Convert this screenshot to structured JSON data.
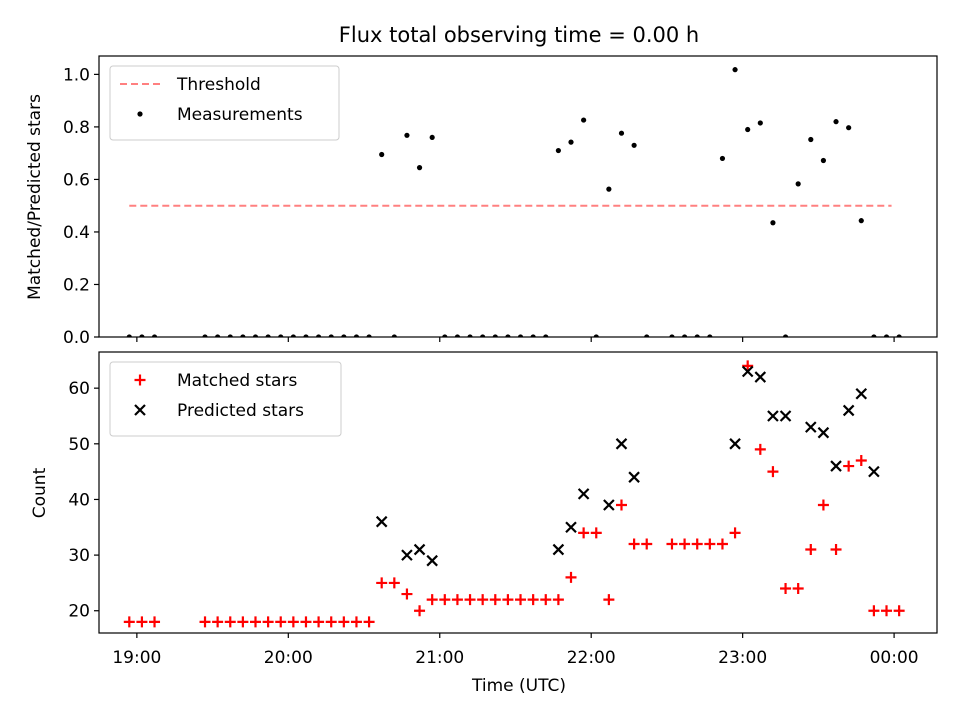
{
  "chart_data": [
    {
      "type": "scatter",
      "title": "Flux total observing time = 0.00 h",
      "ylabel": "Matched/Predicted stars",
      "xlabel": "",
      "xlim": [
        "18:45",
        "00:17"
      ],
      "ylim": [
        0,
        1.07
      ],
      "yticks": [
        "0.0",
        "0.2",
        "0.4",
        "0.6",
        "0.8",
        "1.0"
      ],
      "yticks_values": [
        0,
        0.2,
        0.4,
        0.6,
        0.8,
        1.0
      ],
      "xticks_values": [
        "19:00",
        "20:00",
        "21:00",
        "22:00",
        "23:00",
        "00:00"
      ],
      "grid": false,
      "legend_position": "top-left",
      "threshold": {
        "name": "Threshold",
        "value": 0.5,
        "color": "#ff8080",
        "x_start": "18:57",
        "x_end": "23:59"
      },
      "series": [
        {
          "name": "Measurements",
          "color": "#000000",
          "x": [
            "18:57",
            "19:02",
            "19:07",
            "19:27",
            "19:32",
            "19:37",
            "19:42",
            "19:47",
            "19:52",
            "19:57",
            "20:02",
            "20:07",
            "20:12",
            "20:17",
            "20:22",
            "20:27",
            "20:32",
            "20:37",
            "20:42",
            "20:47",
            "20:52",
            "20:57",
            "21:02",
            "21:07",
            "21:12",
            "21:17",
            "21:22",
            "21:27",
            "21:32",
            "21:37",
            "21:42",
            "21:47",
            "21:52",
            "21:57",
            "22:02",
            "22:07",
            "22:12",
            "22:17",
            "22:22",
            "22:32",
            "22:37",
            "22:42",
            "22:47",
            "22:52",
            "22:57",
            "23:02",
            "23:07",
            "23:12",
            "23:17",
            "23:22",
            "23:27",
            "23:32",
            "23:37",
            "23:42",
            "23:47",
            "23:52",
            "23:57",
            "00:02"
          ],
          "y": [
            0,
            0,
            0,
            0,
            0,
            0,
            0,
            0,
            0,
            0,
            0,
            0,
            0,
            0,
            0,
            0,
            0,
            0.695,
            0,
            0.768,
            0.645,
            0.76,
            0,
            0,
            0,
            0,
            0,
            0,
            0,
            0,
            0,
            0.71,
            0.742,
            0.826,
            0,
            0.563,
            0.776,
            0.73,
            0,
            0,
            0,
            0,
            0,
            0.68,
            1.018,
            0.79,
            0.815,
            0.435,
            0,
            0.583,
            0.752,
            0.672,
            0.82,
            0.797,
            0.443,
            0,
            0,
            0
          ]
        }
      ]
    },
    {
      "type": "scatter",
      "title": "",
      "xlabel": "Time (UTC)",
      "ylabel": "Count",
      "xlim": [
        "18:45",
        "00:17"
      ],
      "ylim": [
        16,
        66.5
      ],
      "yticks": [
        "20",
        "30",
        "40",
        "50",
        "60"
      ],
      "yticks_values": [
        20,
        30,
        40,
        50,
        60
      ],
      "xticks": [
        "19:00",
        "20:00",
        "21:00",
        "22:00",
        "23:00",
        "00:00"
      ],
      "xticks_values": [
        "19:00",
        "20:00",
        "21:00",
        "22:00",
        "23:00",
        "00:00"
      ],
      "grid": false,
      "legend_position": "top-left",
      "series": [
        {
          "name": "Matched stars",
          "color": "#ff0000",
          "marker": "plus",
          "x": [
            "18:57",
            "19:02",
            "19:07",
            "19:27",
            "19:32",
            "19:37",
            "19:42",
            "19:47",
            "19:52",
            "19:57",
            "20:02",
            "20:07",
            "20:12",
            "20:17",
            "20:22",
            "20:27",
            "20:32",
            "20:37",
            "20:42",
            "20:47",
            "20:52",
            "20:57",
            "21:02",
            "21:07",
            "21:12",
            "21:17",
            "21:22",
            "21:27",
            "21:32",
            "21:37",
            "21:42",
            "21:47",
            "21:52",
            "21:57",
            "22:02",
            "22:07",
            "22:12",
            "22:17",
            "22:22",
            "22:32",
            "22:37",
            "22:42",
            "22:47",
            "22:52",
            "22:57",
            "23:02",
            "23:07",
            "23:12",
            "23:17",
            "23:22",
            "23:27",
            "23:32",
            "23:37",
            "23:42",
            "23:47",
            "23:52",
            "23:57",
            "00:02"
          ],
          "y": [
            18,
            18,
            18,
            18,
            18,
            18,
            18,
            18,
            18,
            18,
            18,
            18,
            18,
            18,
            18,
            18,
            18,
            25,
            25,
            23,
            20,
            22,
            22,
            22,
            22,
            22,
            22,
            22,
            22,
            22,
            22,
            22,
            26,
            34,
            34,
            22,
            39,
            32,
            32,
            32,
            32,
            32,
            32,
            32,
            34,
            64,
            49,
            45,
            24,
            24,
            31,
            39,
            31,
            46,
            47,
            20,
            20,
            20
          ]
        },
        {
          "name": "Predicted stars",
          "color": "#000000",
          "marker": "x",
          "x": [
            "20:37",
            "20:47",
            "20:52",
            "20:57",
            "21:47",
            "21:52",
            "21:57",
            "22:07",
            "22:12",
            "22:17",
            "22:57",
            "23:02",
            "23:07",
            "23:12",
            "23:17",
            "23:27",
            "23:32",
            "23:37",
            "23:42",
            "23:47",
            "23:52"
          ],
          "y": [
            36,
            30,
            31,
            29,
            31,
            35,
            41,
            39,
            50,
            44,
            50,
            63,
            62,
            55,
            55,
            53,
            52,
            46,
            56,
            59,
            45
          ]
        }
      ]
    }
  ]
}
